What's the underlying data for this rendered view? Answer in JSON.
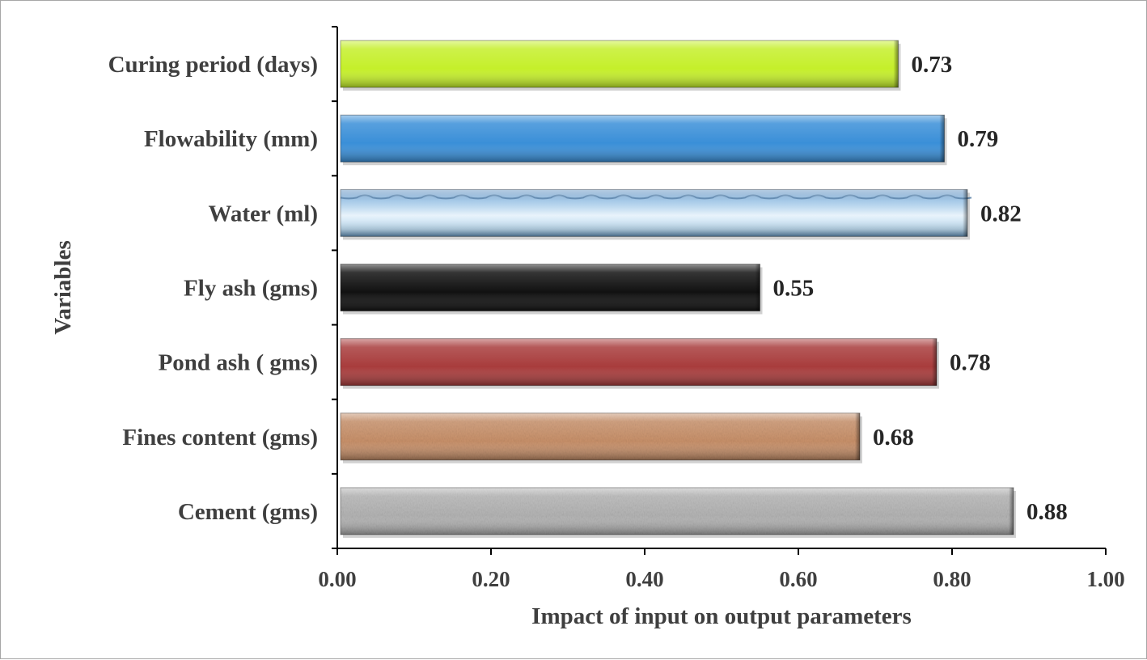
{
  "chart_data": {
    "type": "bar",
    "orientation": "horizontal",
    "categories": [
      "Cement (gms)",
      "Fines content (gms)",
      "Pond ash ( gms)",
      "Fly ash (gms)",
      "Water (ml)",
      "Flowability (mm)",
      "Curing period (days)"
    ],
    "values": [
      0.88,
      0.68,
      0.78,
      0.55,
      0.82,
      0.79,
      0.73
    ],
    "value_labels": [
      "0.88",
      "0.68",
      "0.78",
      "0.55",
      "0.82",
      "0.79",
      "0.73"
    ],
    "bar_colors": [
      "#b4b4b4",
      "#c9916a",
      "#a83c3c",
      "#111111",
      "#cfe6f7",
      "#3a8fd8",
      "#c5ef2a"
    ],
    "title": "",
    "xlabel": "Impact of input on output parameters",
    "ylabel": "Variables",
    "xlim": [
      0,
      1
    ],
    "x_ticks": [
      "0.00",
      "0.20",
      "0.40",
      "0.60",
      "0.80",
      "1.00"
    ],
    "grid": false,
    "legend": "none"
  }
}
